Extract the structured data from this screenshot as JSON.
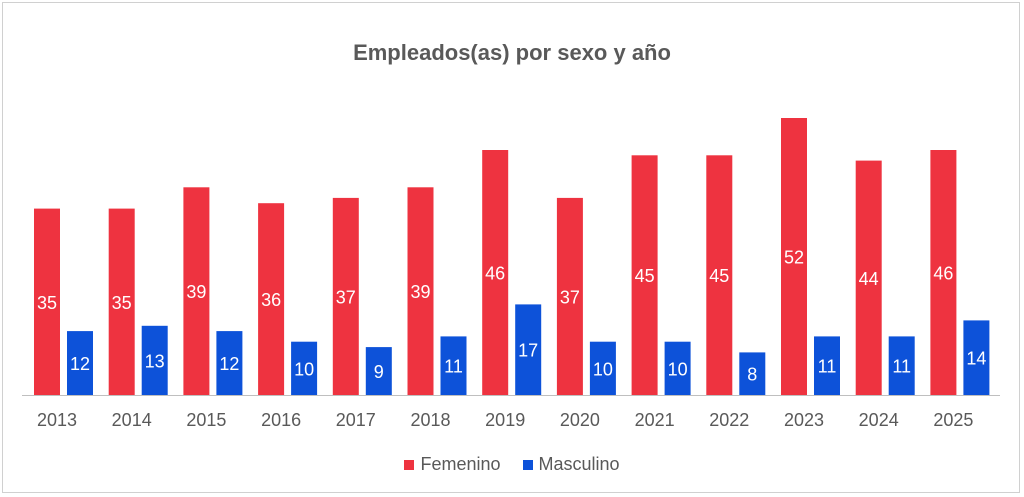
{
  "chart_data": {
    "type": "bar",
    "title": "Empleados(as) por sexo y año",
    "categories": [
      "2013",
      "2014",
      "2015",
      "2016",
      "2017",
      "2018",
      "2019",
      "2020",
      "2021",
      "2022",
      "2023",
      "2024",
      "2025"
    ],
    "series": [
      {
        "name": "Femenino",
        "color": "#EE3340",
        "values": [
          35,
          35,
          39,
          36,
          37,
          39,
          46,
          37,
          45,
          45,
          52,
          44,
          46
        ]
      },
      {
        "name": "Masculino",
        "color": "#0D52D9",
        "values": [
          12,
          13,
          12,
          10,
          9,
          11,
          17,
          10,
          10,
          8,
          11,
          11,
          14
        ]
      }
    ],
    "ylim": [
      0,
      52
    ],
    "legend": "bottom",
    "data_labels": true,
    "grid": false
  }
}
